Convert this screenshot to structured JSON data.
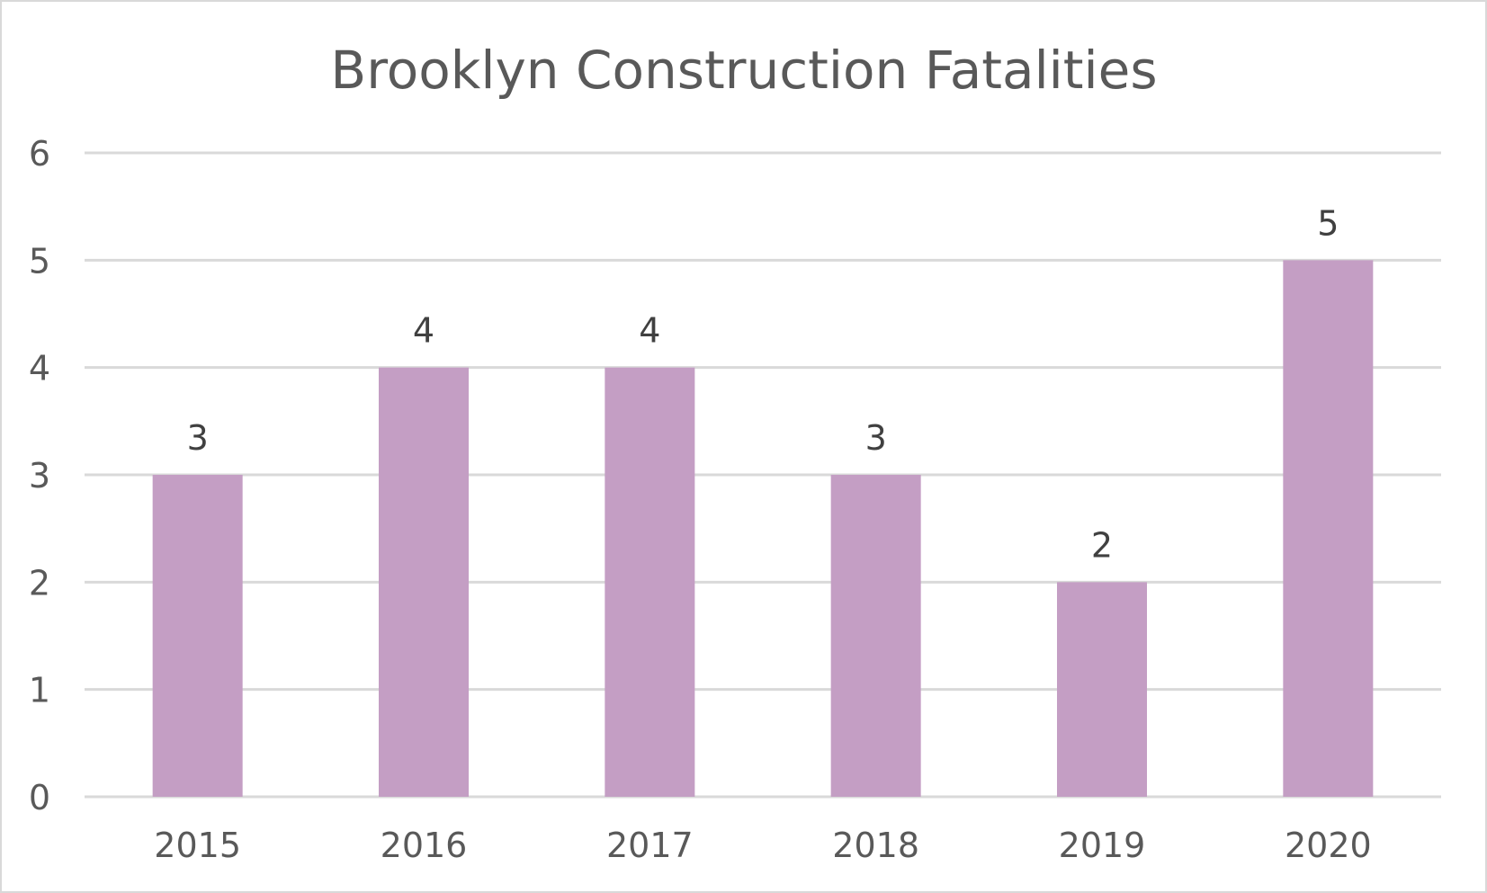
{
  "chart_data": {
    "type": "bar",
    "title": "Brooklyn Construction Fatalities",
    "xlabel": "",
    "ylabel": "",
    "categories": [
      "2015",
      "2016",
      "2017",
      "2018",
      "2019",
      "2020"
    ],
    "values": [
      3,
      4,
      4,
      3,
      2,
      5
    ],
    "data_labels": [
      "3",
      "4",
      "4",
      "3",
      "2",
      "5"
    ],
    "ylim": [
      0,
      6
    ],
    "yticks": [
      0,
      1,
      2,
      3,
      4,
      5,
      6
    ],
    "ytick_labels": [
      "0",
      "1",
      "2",
      "3",
      "4",
      "5",
      "6"
    ],
    "grid": true,
    "legend": "none",
    "bar_color": "#c49ec4",
    "gridline_color": "#d9d9d9",
    "text_color": "#595959"
  }
}
